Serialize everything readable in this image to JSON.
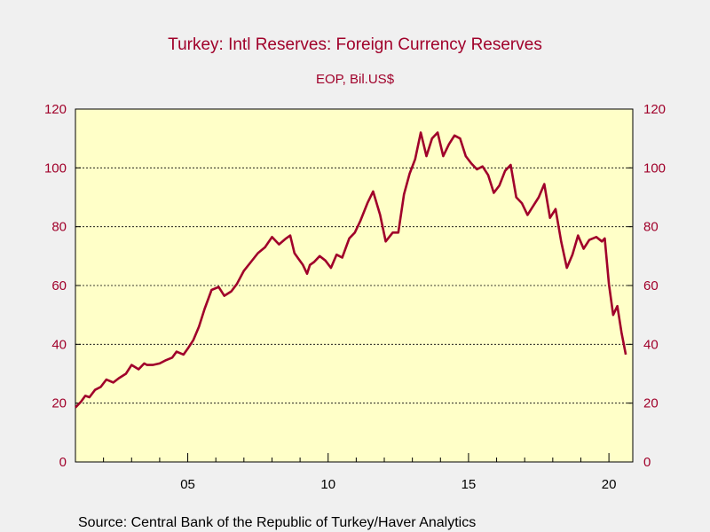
{
  "chart_data": {
    "type": "line",
    "title": "Turkey: Intl Reserves: Foreign Currency Reserves",
    "subtitle": "EOP, Bil.US$",
    "source": "Source:  Central Bank of the Republic of Turkey/Haver Analytics",
    "xlabel": "",
    "ylabel": "",
    "xlim": [
      2001.0,
      2020.85
    ],
    "ylim": [
      0,
      120
    ],
    "yticks": [
      0,
      20,
      40,
      60,
      80,
      100,
      120
    ],
    "yticks_right": [
      0,
      20,
      40,
      60,
      80,
      100,
      120
    ],
    "xticks": [
      {
        "value": 2005,
        "label": "05"
      },
      {
        "value": 2010,
        "label": "10"
      },
      {
        "value": 2015,
        "label": "15"
      },
      {
        "value": 2020,
        "label": "20"
      }
    ],
    "xminor_ticks": [
      2002,
      2003,
      2004,
      2006,
      2007,
      2008,
      2009,
      2011,
      2012,
      2013,
      2014,
      2016,
      2017,
      2018,
      2019
    ],
    "grid": "horizontal-dotted",
    "legend": "none",
    "colors": {
      "line": "#a0002a",
      "plot_background": "#ffffc8",
      "page_background": "#f0f0f0",
      "axis_text": "#a0002a"
    },
    "series": [
      {
        "x": [
          2001.0,
          2001.2,
          2001.35,
          2001.5,
          2001.7,
          2001.9,
          2002.1,
          2002.35,
          2002.55,
          2002.8,
          2003.0,
          2003.25,
          2003.45,
          2003.55,
          2003.75,
          2004.0,
          2004.2,
          2004.45,
          2004.6,
          2004.85,
          2005.0,
          2005.2,
          2005.4,
          2005.6,
          2005.85,
          2006.1,
          2006.3,
          2006.55,
          2006.75,
          2007.0,
          2007.25,
          2007.5,
          2007.75,
          2008.0,
          2008.25,
          2008.5,
          2008.65,
          2008.8,
          2008.95,
          2009.1,
          2009.25,
          2009.35,
          2009.5,
          2009.7,
          2009.9,
          2010.1,
          2010.3,
          2010.5,
          2010.75,
          2010.95,
          2011.15,
          2011.4,
          2011.6,
          2011.85,
          2012.05,
          2012.3,
          2012.5,
          2012.7,
          2012.9,
          2013.1,
          2013.3,
          2013.5,
          2013.7,
          2013.9,
          2014.1,
          2014.3,
          2014.5,
          2014.7,
          2014.9,
          2015.1,
          2015.3,
          2015.5,
          2015.7,
          2015.9,
          2016.1,
          2016.3,
          2016.5,
          2016.7,
          2016.9,
          2017.1,
          2017.3,
          2017.5,
          2017.7,
          2017.9,
          2018.1,
          2018.3,
          2018.5,
          2018.7,
          2018.9,
          2019.1,
          2019.3,
          2019.55,
          2019.75,
          2019.85,
          2020.0,
          2020.15,
          2020.3,
          2020.45,
          2020.6
        ],
        "values": [
          18.5,
          20.5,
          22.5,
          22.0,
          24.5,
          25.5,
          28.0,
          27.0,
          28.5,
          30.0,
          33.0,
          31.5,
          33.5,
          33.0,
          33.0,
          33.5,
          34.5,
          35.5,
          37.5,
          36.5,
          38.5,
          41.5,
          46.0,
          52.0,
          58.5,
          59.5,
          56.5,
          58.0,
          60.5,
          65.0,
          68.0,
          71.0,
          73.0,
          76.5,
          74.0,
          76.0,
          77.0,
          71.0,
          69.0,
          67.0,
          64.0,
          67.0,
          68.0,
          70.0,
          68.5,
          66.0,
          70.5,
          69.5,
          76.0,
          78.0,
          82.0,
          88.0,
          92.0,
          84.0,
          75.0,
          78.0,
          78.0,
          91.0,
          98.0,
          103.0,
          112.0,
          104.0,
          110.0,
          112.0,
          104.0,
          108.0,
          111.0,
          110.0,
          104.0,
          101.5,
          99.5,
          100.5,
          97.5,
          91.5,
          94.0,
          99.0,
          101.0,
          90.0,
          88.0,
          84.0,
          87.0,
          90.0,
          94.5,
          83.0,
          86.0,
          75.0,
          66.0,
          70.5,
          77.0,
          72.5,
          75.5,
          76.5,
          75.0,
          76.0,
          60.5,
          50.0,
          53.0,
          44.0,
          36.5
        ]
      }
    ]
  }
}
